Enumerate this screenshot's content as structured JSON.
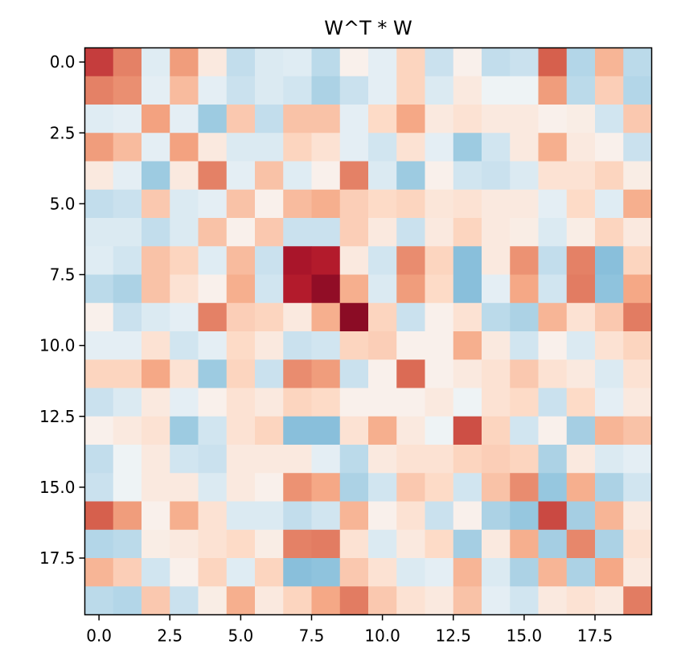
{
  "chart_data": {
    "type": "heatmap",
    "title": "W^T * W",
    "xlabel": "",
    "ylabel": "",
    "colormap": "RdBu_r",
    "rows": 20,
    "cols": 20,
    "xlim": [
      -0.5,
      19.5
    ],
    "ylim": [
      19.5,
      -0.5
    ],
    "x_ticks": [
      "0.0",
      "2.5",
      "5.0",
      "7.5",
      "10.0",
      "12.5",
      "15.0",
      "17.5"
    ],
    "y_ticks": [
      "0.0",
      "2.5",
      "5.0",
      "7.5",
      "10.0",
      "12.5",
      "15.0",
      "17.5"
    ],
    "tick_values": [
      0,
      2.5,
      5,
      7.5,
      10,
      12.5,
      15,
      17.5
    ],
    "vmin": -1,
    "vmax": 1,
    "grid": false,
    "values": [
      [
        0.62,
        0.38,
        -0.05,
        0.28,
        0.04,
        -0.12,
        -0.06,
        -0.05,
        -0.14,
        0.02,
        -0.04,
        0.1,
        -0.1,
        0.02,
        -0.12,
        -0.1,
        0.5,
        -0.16,
        0.2,
        -0.14
      ],
      [
        0.38,
        0.33,
        -0.04,
        0.18,
        -0.04,
        -0.1,
        -0.06,
        -0.08,
        -0.18,
        -0.1,
        -0.04,
        0.1,
        -0.06,
        0.04,
        -0.02,
        -0.02,
        0.28,
        -0.14,
        0.12,
        -0.16
      ],
      [
        -0.05,
        -0.04,
        0.26,
        -0.04,
        -0.22,
        0.14,
        -0.12,
        0.16,
        0.16,
        -0.04,
        0.08,
        0.24,
        0.04,
        0.06,
        0.04,
        0.04,
        0.02,
        0.03,
        -0.08,
        0.14
      ],
      [
        0.28,
        0.18,
        -0.04,
        0.26,
        0.04,
        -0.06,
        -0.06,
        0.1,
        0.06,
        -0.04,
        -0.08,
        0.06,
        -0.04,
        -0.22,
        -0.08,
        0.04,
        0.22,
        0.04,
        0.02,
        -0.1
      ],
      [
        0.04,
        -0.04,
        -0.22,
        0.04,
        0.38,
        -0.04,
        0.16,
        -0.05,
        0.02,
        0.38,
        -0.06,
        -0.22,
        0.02,
        -0.08,
        -0.1,
        -0.06,
        0.06,
        0.06,
        0.1,
        0.03
      ],
      [
        -0.12,
        -0.1,
        0.14,
        -0.06,
        -0.04,
        0.16,
        0.02,
        0.18,
        0.22,
        0.12,
        0.08,
        0.1,
        0.05,
        0.06,
        0.04,
        0.04,
        -0.04,
        0.08,
        -0.05,
        0.22
      ],
      [
        -0.06,
        -0.06,
        -0.12,
        -0.06,
        0.16,
        0.02,
        0.14,
        -0.1,
        -0.1,
        0.12,
        0.04,
        -0.1,
        0.04,
        0.1,
        0.04,
        0.03,
        -0.06,
        0.03,
        0.1,
        0.04
      ],
      [
        -0.05,
        -0.08,
        0.16,
        0.1,
        -0.05,
        0.18,
        -0.1,
        0.78,
        0.74,
        0.04,
        -0.08,
        0.34,
        0.1,
        -0.28,
        0.04,
        0.32,
        -0.12,
        0.38,
        -0.28,
        0.1
      ],
      [
        -0.14,
        -0.18,
        0.16,
        0.06,
        0.02,
        0.22,
        -0.08,
        0.74,
        0.86,
        0.22,
        -0.06,
        0.28,
        0.08,
        -0.28,
        -0.04,
        0.24,
        -0.08,
        0.4,
        -0.26,
        0.24
      ],
      [
        0.02,
        -0.1,
        -0.06,
        -0.04,
        0.38,
        0.12,
        0.1,
        0.04,
        0.22,
        0.88,
        0.1,
        -0.1,
        0.02,
        0.06,
        -0.14,
        -0.18,
        0.2,
        0.06,
        0.14,
        0.4
      ],
      [
        -0.04,
        -0.04,
        0.06,
        -0.08,
        -0.04,
        0.08,
        0.04,
        -0.1,
        -0.08,
        0.1,
        0.12,
        0.02,
        0.02,
        0.22,
        0.04,
        -0.08,
        0.02,
        -0.06,
        0.06,
        0.1
      ],
      [
        0.1,
        0.1,
        0.24,
        0.06,
        -0.22,
        0.1,
        -0.1,
        0.34,
        0.28,
        -0.1,
        0.02,
        0.46,
        0.02,
        0.04,
        0.06,
        0.14,
        0.06,
        0.04,
        -0.06,
        0.06
      ],
      [
        -0.1,
        -0.06,
        0.04,
        -0.04,
        0.02,
        0.06,
        0.04,
        0.1,
        0.08,
        0.02,
        0.02,
        0.02,
        0.04,
        -0.02,
        0.06,
        0.08,
        -0.1,
        0.08,
        -0.04,
        0.04
      ],
      [
        0.02,
        0.04,
        0.06,
        -0.22,
        -0.08,
        0.06,
        0.1,
        -0.28,
        -0.28,
        0.06,
        0.22,
        0.04,
        -0.02,
        0.56,
        0.1,
        -0.08,
        0.02,
        -0.2,
        0.2,
        0.16
      ],
      [
        -0.12,
        -0.02,
        0.04,
        -0.08,
        -0.1,
        0.04,
        0.04,
        0.04,
        -0.04,
        -0.14,
        0.04,
        0.06,
        0.06,
        0.1,
        0.12,
        0.1,
        -0.18,
        0.04,
        -0.06,
        -0.04
      ],
      [
        -0.1,
        -0.02,
        0.04,
        0.04,
        -0.06,
        0.04,
        0.02,
        0.32,
        0.24,
        -0.18,
        -0.08,
        0.14,
        0.08,
        -0.08,
        0.16,
        0.34,
        -0.24,
        0.22,
        -0.18,
        -0.08
      ],
      [
        0.5,
        0.28,
        0.02,
        0.22,
        0.06,
        -0.06,
        -0.06,
        -0.12,
        -0.08,
        0.2,
        0.02,
        0.06,
        -0.1,
        0.02,
        -0.18,
        -0.24,
        0.58,
        -0.2,
        0.2,
        0.04
      ],
      [
        -0.16,
        -0.14,
        0.03,
        0.04,
        0.06,
        0.08,
        0.03,
        0.38,
        0.4,
        0.06,
        -0.06,
        0.04,
        0.08,
        -0.2,
        0.04,
        0.22,
        -0.2,
        0.36,
        -0.18,
        0.06
      ],
      [
        0.2,
        0.12,
        -0.08,
        0.02,
        0.1,
        -0.05,
        0.1,
        -0.28,
        -0.26,
        0.14,
        0.06,
        -0.06,
        -0.04,
        0.2,
        -0.06,
        -0.18,
        0.2,
        -0.18,
        0.24,
        0.04
      ],
      [
        -0.14,
        -0.16,
        0.14,
        -0.1,
        0.03,
        0.22,
        0.04,
        0.1,
        0.24,
        0.4,
        0.14,
        0.06,
        0.04,
        0.16,
        -0.04,
        -0.08,
        0.04,
        0.06,
        0.04,
        0.4
      ]
    ]
  }
}
